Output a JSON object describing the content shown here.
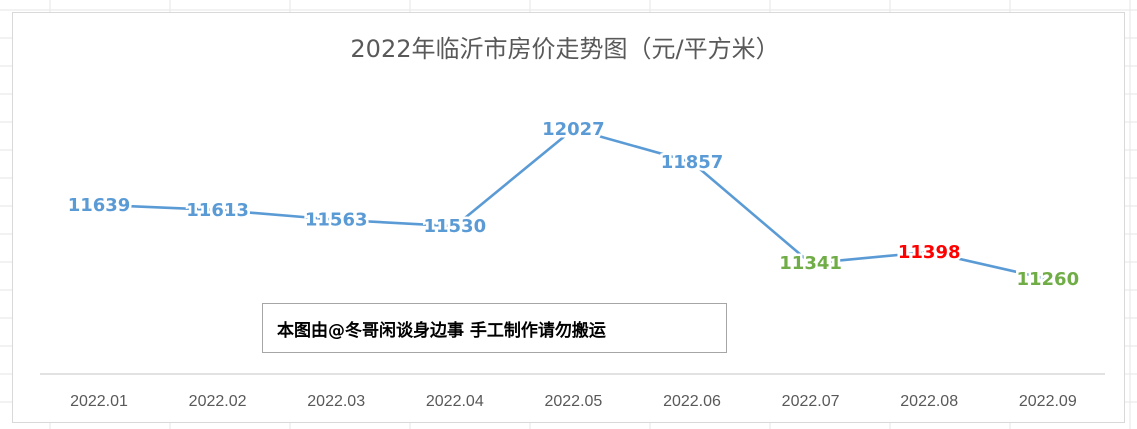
{
  "watermark": "本图由@冬哥闲谈身边事 手工制作请勿搬运",
  "colors": {
    "line": "#5B9BD5",
    "label_default": "#5B9BD5",
    "label_low": "#70AD47",
    "label_peak_highlight": "#FF0000",
    "title": "#595959",
    "axis_text": "#595959"
  },
  "chart_data": {
    "type": "line",
    "title": "2022年临沂市房价走势图（元/平方米）",
    "categories": [
      "2022.01",
      "2022.02",
      "2022.03",
      "2022.04",
      "2022.05",
      "2022.06",
      "2022.07",
      "2022.08",
      "2022.09"
    ],
    "values": [
      11639,
      11613,
      11563,
      11530,
      12027,
      11857,
      11341,
      11398,
      11260
    ],
    "data_label_colors": [
      "#5B9BD5",
      "#5B9BD5",
      "#5B9BD5",
      "#5B9BD5",
      "#5B9BD5",
      "#5B9BD5",
      "#70AD47",
      "#FF0000",
      "#70AD47"
    ],
    "xlabel": "",
    "ylabel": "",
    "y_axis_visible": false,
    "grid": false,
    "legend": "none"
  }
}
